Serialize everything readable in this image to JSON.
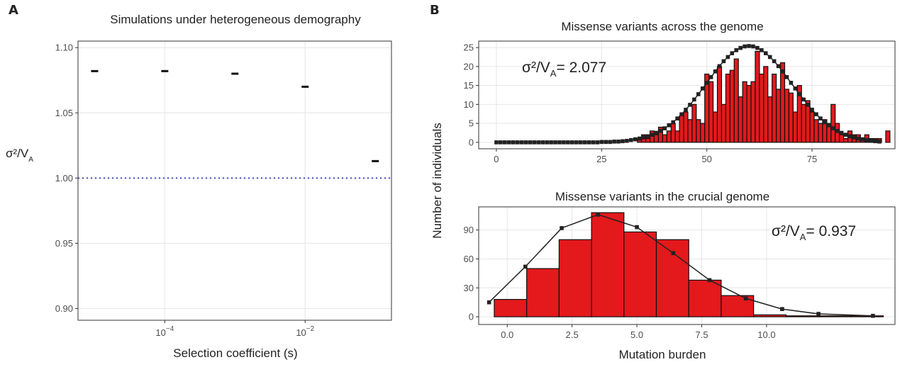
{
  "chart_data": [
    {
      "type": "scatter",
      "panel": "A",
      "title": "Simulations under heterogeneous demography",
      "x_label": "Selection coefficient (s)",
      "y_label": {
        "prefix": "σ²/V",
        "sub": "A"
      },
      "xscale": "log",
      "x": [
        1e-05,
        0.0001,
        0.001,
        0.01,
        0.1
      ],
      "values": [
        1.082,
        1.082,
        1.08,
        1.07,
        1.013
      ],
      "color": "#111111",
      "xlim": [
        5.8e-06,
        0.17
      ],
      "ylim": [
        0.891,
        1.105
      ],
      "xticks": [
        {
          "value": 0.0001,
          "label": "10",
          "exponent": "−4"
        },
        {
          "value": 0.01,
          "label": "10",
          "exponent": "−2"
        }
      ],
      "yticks": [
        {
          "value": 0.9,
          "label": "0.90"
        },
        {
          "value": 0.95,
          "label": "0.95"
        },
        {
          "value": 1,
          "label": "1.00"
        },
        {
          "value": 1.05,
          "label": "1.05"
        },
        {
          "value": 1.1,
          "label": "1.10"
        }
      ],
      "reference_line": {
        "value": 1,
        "color": "#3b4cc0"
      },
      "grid": true
    },
    {
      "type": "histogram",
      "panel": "B",
      "title": "Missense variants across the genome",
      "y_label": "Number of individuals",
      "annotation": {
        "prefix": "σ²/V",
        "sub": "A",
        "suffix": "= 2.077"
      },
      "bins": [
        33.5,
        34.5,
        35.5,
        36.5,
        37.5,
        38.5,
        39.5,
        40.5,
        41.5,
        42.5,
        43.5,
        44.5,
        45.5,
        46.5,
        47.5,
        48.5,
        49.5,
        50.5,
        51.5,
        52.5,
        53.5,
        54.5,
        55.5,
        56.5,
        57.5,
        58.5,
        59.5,
        60.5,
        61.5,
        62.5,
        63.5,
        64.5,
        65.5,
        66.5,
        67.5,
        68.5,
        69.5,
        70.5,
        71.5,
        72.5,
        73.5,
        74.5,
        75.5,
        76.5,
        77.5,
        78.5,
        79.5,
        80.5,
        81.5,
        82.5,
        83.5,
        84.5,
        85.5,
        86.5,
        87.5,
        88.5,
        89.5,
        90.5,
        91.5,
        92.5,
        93.5
      ],
      "values": [
        1,
        2,
        1,
        3,
        2,
        4,
        2,
        3,
        5,
        3,
        7,
        8,
        6,
        10,
        6,
        5,
        18,
        16,
        8,
        20,
        10,
        18,
        19,
        22,
        12,
        16,
        15,
        16,
        24,
        18,
        20,
        12,
        18,
        14,
        21,
        14,
        13,
        8,
        15,
        10,
        11,
        8,
        6,
        5,
        6,
        5,
        10,
        5,
        2,
        1,
        3,
        2,
        2,
        1,
        2,
        1,
        1,
        1,
        0,
        3
      ],
      "color": "#e3191c",
      "curve": {
        "color": "#222222",
        "x": [
          0,
          1,
          2,
          3,
          4,
          5,
          6,
          7,
          8,
          9,
          10,
          11,
          12,
          13,
          14,
          15,
          16,
          17,
          18,
          19,
          20,
          21,
          22,
          23,
          24,
          25,
          26,
          27,
          28,
          29,
          30,
          31,
          32,
          33,
          34,
          35,
          36,
          37,
          38,
          39,
          40,
          41,
          42,
          43,
          44,
          45,
          46,
          47,
          48,
          49,
          50,
          51,
          52,
          53,
          54,
          55,
          56,
          57,
          58,
          59,
          60,
          61,
          62,
          63,
          64,
          65,
          66,
          67,
          68,
          69,
          70,
          71,
          72,
          73,
          74,
          75,
          76,
          77,
          78,
          79,
          80,
          81,
          82,
          83,
          84,
          85,
          86,
          87,
          88,
          89,
          90,
          91
        ],
        "values": [
          0,
          0,
          0,
          0,
          0,
          0,
          0,
          0,
          0,
          0,
          0,
          0,
          0,
          0,
          0,
          0,
          0,
          0,
          0,
          0,
          0,
          0,
          0,
          0,
          0,
          0.1,
          0.1,
          0.1,
          0.2,
          0.2,
          0.3,
          0.4,
          0.6,
          0.8,
          1.0,
          1.3,
          1.6,
          2.0,
          2.5,
          3.0,
          3.7,
          4.5,
          5.3,
          6.3,
          7.4,
          8.6,
          9.9,
          11.3,
          12.7,
          14.2,
          15.7,
          17.2,
          18.7,
          20.1,
          21.4,
          22.5,
          23.5,
          24.3,
          24.9,
          25.3,
          25.4,
          25.3,
          24.9,
          24.3,
          23.5,
          22.5,
          21.4,
          20.1,
          18.7,
          17.2,
          15.7,
          14.2,
          12.7,
          11.3,
          9.9,
          8.6,
          7.4,
          6.3,
          5.3,
          4.5,
          3.7,
          3.0,
          2.5,
          2.0,
          1.6,
          1.3,
          1.0,
          0.8,
          0.6,
          0.4,
          0.3,
          0.2
        ]
      },
      "xlim": [
        -4.2,
        94.7
      ],
      "ylim": [
        -1.7,
        26.7
      ],
      "xticks": [
        0,
        25,
        50,
        75
      ],
      "yticks": [
        0,
        5,
        10,
        15,
        20,
        25
      ],
      "grid": true
    },
    {
      "type": "histogram",
      "title": "Missense variants in the crucial genome",
      "x_label": "Mutation burden",
      "annotation": {
        "prefix": "σ²/V",
        "sub": "A",
        "suffix": "= 0.937"
      },
      "bins": [
        -0.5,
        0.75,
        2,
        3.25,
        4.5,
        5.75,
        7,
        8.25,
        9.5,
        10.75,
        12,
        13.25,
        14.5
      ],
      "values": [
        18,
        50,
        80,
        108,
        88,
        80,
        38,
        22,
        2,
        1,
        1,
        1
      ],
      "color": "#e3191c",
      "curve": {
        "color": "#222222",
        "x": [
          -0.7,
          0.7,
          2.1,
          3.5,
          5.0,
          6.4,
          7.8,
          9.2,
          10.6,
          12.0,
          14.1
        ],
        "values": [
          15,
          52,
          92,
          106,
          93,
          66,
          38,
          19,
          8,
          3,
          1
        ]
      },
      "xlim": [
        -1.1,
        14.95
      ],
      "ylim": [
        -8,
        114
      ],
      "xticks": [
        {
          "value": 0,
          "label": "0.0"
        },
        {
          "value": 2.5,
          "label": "2.5"
        },
        {
          "value": 5,
          "label": "5.0"
        },
        {
          "value": 7.5,
          "label": "7.5"
        },
        {
          "value": 10,
          "label": "10.0"
        }
      ],
      "yticks": [
        0,
        30,
        60,
        90
      ],
      "grid": true
    }
  ]
}
